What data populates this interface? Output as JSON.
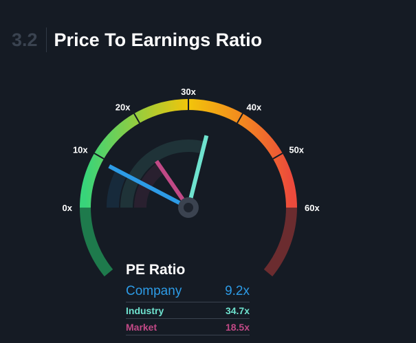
{
  "header": {
    "section_number": "3.2",
    "title": "Price To Earnings Ratio"
  },
  "chart_data": {
    "type": "gauge",
    "title": "Price To Earnings Ratio",
    "range": [
      0,
      60
    ],
    "ticks": [
      "0x",
      "10x",
      "20x",
      "30x",
      "40x",
      "50x",
      "60x"
    ],
    "series": [
      {
        "name": "Company",
        "value": 9.2,
        "label": "9.2x",
        "color": "#2d9be6"
      },
      {
        "name": "Industry",
        "value": 34.7,
        "label": "34.7x",
        "color": "#6fe3cf"
      },
      {
        "name": "Market",
        "value": 18.5,
        "label": "18.5x",
        "color": "#c14986"
      }
    ]
  },
  "legend": {
    "title": "PE Ratio"
  }
}
